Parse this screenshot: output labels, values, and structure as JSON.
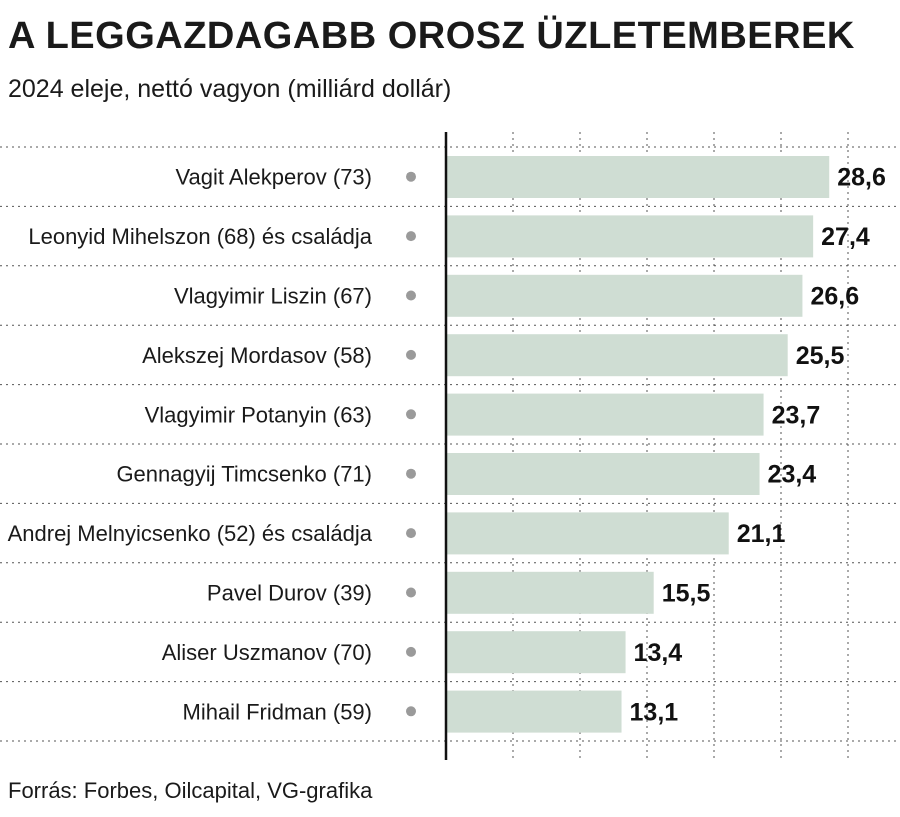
{
  "header": {
    "title": "A LEGGAZDAGABB OROSZ ÜZLETEMBEREK",
    "subtitle": "2024 eleje, nettó vagyon (milliárd dollár)"
  },
  "footer": {
    "source": "Forrás: Forbes, Oilcapital, VG-grafika"
  },
  "colors": {
    "bar": "#cfddd3",
    "dot": "#9a9a9a",
    "grid": "#555555",
    "axis": "#111111"
  },
  "chart_data": {
    "type": "bar",
    "orientation": "horizontal",
    "title": "A LEGGAZDAGABB OROSZ ÜZLETEMBEREK",
    "subtitle": "2024 eleje, nettó vagyon (milliárd dollár)",
    "categories": [
      "Vagit Alekperov (73)",
      "Leonyid Mihelszon (68) és családja",
      "Vlagyimir Liszin (67)",
      "Alekszej Mordasov (58)",
      "Vlagyimir Potanyin (63)",
      "Gennagyij Timcsenko (71)",
      "Andrej Melnyicsenko (52) és családja",
      "Pavel Durov (39)",
      "Aliser Uszmanov (70)",
      "Mihail Fridman (59)"
    ],
    "values": [
      28.6,
      27.4,
      26.6,
      25.5,
      23.7,
      23.4,
      21.1,
      15.5,
      13.4,
      13.1
    ],
    "value_labels": [
      "28,6",
      "27,4",
      "26,6",
      "25,5",
      "23,7",
      "23,4",
      "21,1",
      "15,5",
      "13,4",
      "13,1"
    ],
    "xlim": [
      0,
      30
    ],
    "grid": true,
    "tick_labels_shown": false
  }
}
